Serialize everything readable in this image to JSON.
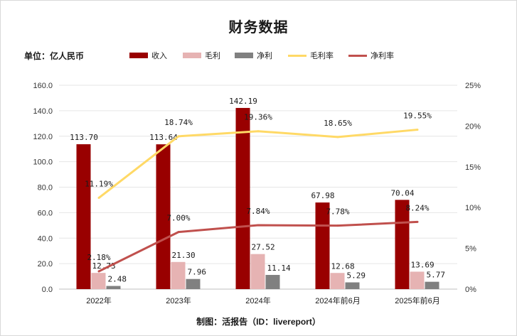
{
  "chart_data": {
    "type": "bar",
    "title": "财务数据",
    "unit_label": "单位：亿人民币",
    "source": "制图：活报告（ID：livereport）",
    "categories": [
      "2022年",
      "2023年",
      "2024年",
      "2024年前6月",
      "2025年前6月"
    ],
    "series": [
      {
        "name": "收入",
        "kind": "bar",
        "axis": "left",
        "color": "#990000",
        "values": [
          113.7,
          113.64,
          142.19,
          67.98,
          70.04
        ],
        "labels": [
          "113.70",
          "113.64",
          "142.19",
          "67.98",
          "70.04"
        ]
      },
      {
        "name": "毛利",
        "kind": "bar",
        "axis": "left",
        "color": "#e6b3b3",
        "values": [
          12.73,
          21.3,
          27.52,
          12.68,
          13.69
        ],
        "labels": [
          "12.73",
          "21.30",
          "27.52",
          "12.68",
          "13.69"
        ]
      },
      {
        "name": "净利",
        "kind": "bar",
        "axis": "left",
        "color": "#808080",
        "values": [
          2.48,
          7.96,
          11.14,
          5.29,
          5.77
        ],
        "labels": [
          "2.48",
          "7.96",
          "11.14",
          "5.29",
          "5.77"
        ]
      },
      {
        "name": "毛利率",
        "kind": "line",
        "axis": "right",
        "color": "#ffd966",
        "values": [
          11.19,
          18.74,
          19.36,
          18.65,
          19.55
        ],
        "labels": [
          "11.19%",
          "18.74%",
          "19.36%",
          "18.65%",
          "19.55%"
        ]
      },
      {
        "name": "净利率",
        "kind": "line",
        "axis": "right",
        "color": "#c0504d",
        "values": [
          2.18,
          7.0,
          7.84,
          7.78,
          8.24
        ],
        "labels": [
          "2.18%",
          "7.00%",
          "7.84%",
          "7.78%",
          "8.24%"
        ]
      }
    ],
    "y_left": {
      "min": 0,
      "max": 160,
      "step": 20,
      "tick_labels": [
        "0.0",
        "20.0",
        "40.0",
        "60.0",
        "80.0",
        "100.0",
        "120.0",
        "140.0",
        "160.0"
      ]
    },
    "y_right": {
      "min": 0,
      "max": 25,
      "step": 5,
      "tick_labels": [
        "0%",
        "5%",
        "10%",
        "15%",
        "20%",
        "25%"
      ]
    },
    "grid": true,
    "legend_position": "top"
  }
}
